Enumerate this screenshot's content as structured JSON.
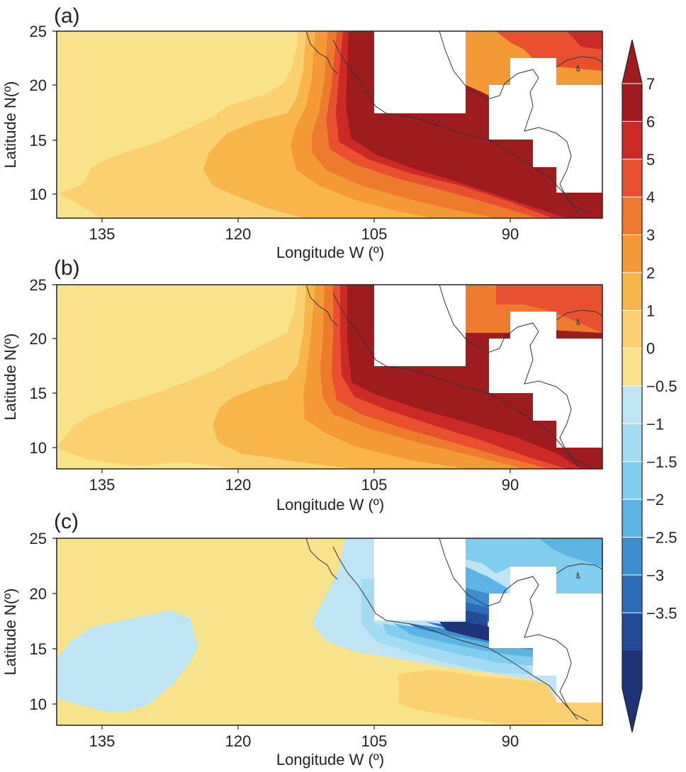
{
  "figure": {
    "panels": [
      {
        "label": "(a)",
        "ylabel": "Latitude N(º)",
        "xlabel": "Longitude W (º)"
      },
      {
        "label": "(b)",
        "ylabel": "Latitude N(º)",
        "xlabel": "Longitude W (º)"
      },
      {
        "label": "(c)",
        "ylabel": "Latitude N(º)",
        "xlabel": "Longitude W (º)"
      }
    ],
    "x_ticks": [
      "135",
      "120",
      "105",
      "90"
    ],
    "y_ticks": [
      "25",
      "20",
      "15",
      "10"
    ],
    "x_range_lon_w": [
      141,
      81
    ],
    "y_range_lat_n": [
      8,
      25
    ]
  },
  "colorbar": {
    "labels": [
      "7",
      "6",
      "5",
      "4",
      "3",
      "2",
      "1",
      "0",
      "−0.5",
      "−1",
      "−1.5",
      "−2",
      "−2.5",
      "−3",
      "−3.5"
    ],
    "colors": [
      "#9e1b1e",
      "#cc2a27",
      "#e8502f",
      "#ee7a2e",
      "#f39a36",
      "#f7b54a",
      "#fad071",
      "#f9e38a",
      "#bfe4f4",
      "#a3dbf2",
      "#81cdee",
      "#5bb4e4",
      "#3d8ed0",
      "#2d6cba",
      "#244a9a",
      "#1f3377"
    ],
    "extend": "both"
  },
  "colors": {
    "white_mask": "#ffffff",
    "frame": "#222222",
    "coast": "#333333"
  }
}
